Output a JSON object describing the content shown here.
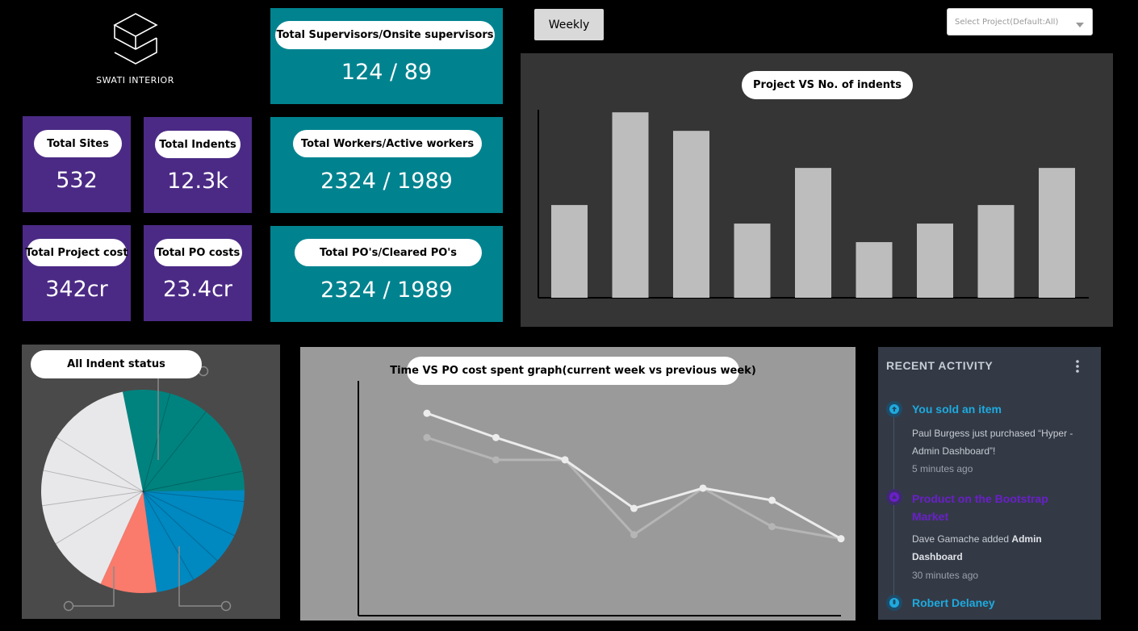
{
  "brand": {
    "name": "SWATI INTERIOR"
  },
  "stats": {
    "total_sites": {
      "label": "Total Sites",
      "value": "532"
    },
    "total_indents": {
      "label": "Total Indents",
      "value": "12.3k"
    },
    "total_project_cost": {
      "label": "Total Project cost",
      "value": "342cr"
    },
    "total_po_costs": {
      "label": "Total PO costs",
      "value": "23.4cr"
    },
    "supervisors": {
      "label": "Total Supervisors/Onsite supervisors",
      "value": "124 / 89"
    },
    "workers": {
      "label": "Total Workers/Active workers",
      "value": "2324 / 1989"
    },
    "pos": {
      "label": "Total PO's/Cleared PO's",
      "value": "2324 / 1989"
    }
  },
  "controls": {
    "weekly_label": "Weekly",
    "project_select": "Select Project(Default:All)"
  },
  "colors": {
    "purple": "#4b2a85",
    "teal": "#00838f",
    "pie_teal": "#00837f",
    "pie_blue": "#0088c0",
    "pie_salmon": "#fa7a6c",
    "pie_light": "#e8e8ea",
    "activity_blue": "#1eaadf",
    "activity_purple": "#6a1fc9"
  },
  "chart_data": [
    {
      "type": "bar",
      "title": "Project VS No. of indents",
      "categories": [
        "",
        "",
        "",
        "",
        "",
        "",
        "",
        "",
        ""
      ],
      "values": [
        5,
        10,
        9,
        4,
        7,
        3,
        4,
        5,
        7
      ],
      "ylim": [
        0,
        10.4
      ]
    },
    {
      "type": "pie",
      "title": "All Indent status",
      "slices": [
        {
          "value": 28,
          "color": "#00837f"
        },
        {
          "value": 23,
          "color": "#0088c0"
        },
        {
          "value": 9,
          "color": "#fa7a6c"
        },
        {
          "value": 40,
          "color": "#e8e8ea"
        }
      ]
    },
    {
      "type": "line",
      "title": "Time VS PO cost spent graph(current week vs previous week)",
      "x": [
        1,
        2,
        3,
        4,
        5,
        6,
        7
      ],
      "series": [
        {
          "values": [
            100,
            88,
            77,
            53,
            63,
            57,
            38
          ],
          "color": "#ececec"
        },
        {
          "values": [
            88,
            77,
            77,
            40,
            63,
            44,
            38
          ],
          "color": "#b5b5b5"
        }
      ],
      "ylim": [
        0,
        116
      ]
    }
  ],
  "activity": {
    "title": "RECENT ACTIVITY",
    "items": [
      {
        "title": "You sold an item",
        "text_pre": "Paul Burgess just purchased “Hyper - Admin Dashboard”!",
        "time": "5 minutes ago"
      },
      {
        "title": "Product on the Bootstrap Market",
        "text_pre": "Dave Gamache added ",
        "text_bold": "Admin Dashboard",
        "time": "30 minutes ago"
      },
      {
        "title": "Robert Delaney"
      }
    ]
  }
}
